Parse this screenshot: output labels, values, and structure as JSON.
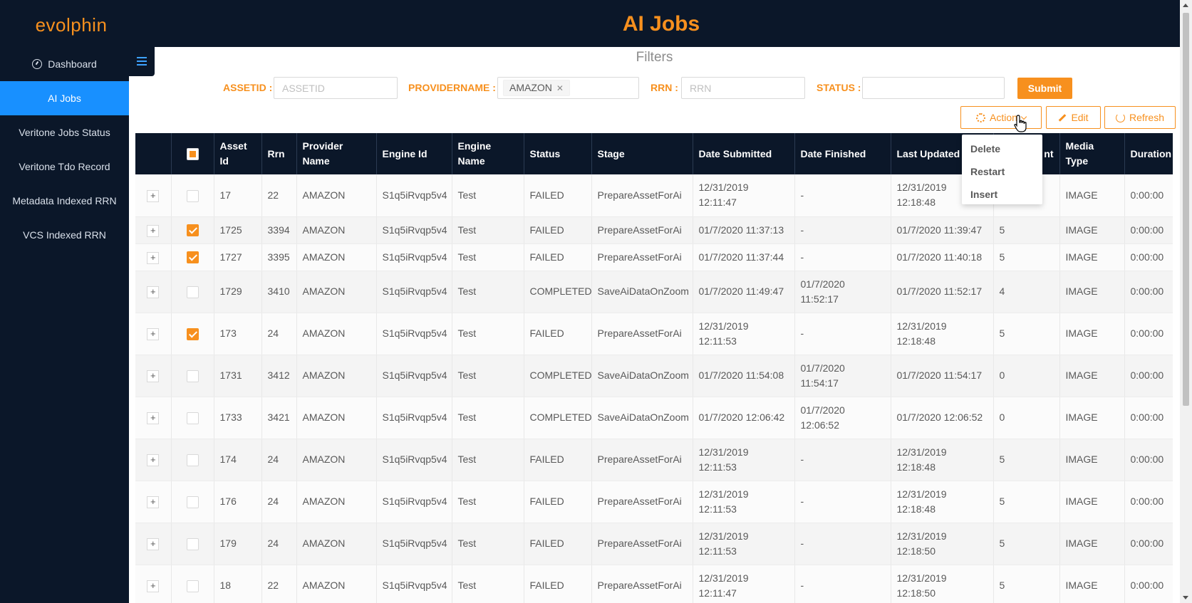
{
  "app": {
    "logo": "evolphin",
    "title": "AI Jobs"
  },
  "sidebar": {
    "items": [
      {
        "label": "Dashboard",
        "icon": "dashboard-icon",
        "active": false
      },
      {
        "label": "AI Jobs",
        "active": true
      },
      {
        "label": "Veritone Jobs Status",
        "active": false
      },
      {
        "label": "Veritone Tdo Record",
        "active": false
      },
      {
        "label": "Metadata Indexed RRN",
        "active": false
      },
      {
        "label": "VCS Indexed RRN",
        "active": false
      }
    ]
  },
  "filters": {
    "title": "Filters",
    "assetid": {
      "label": "ASSETID",
      "placeholder": "ASSETID",
      "value": ""
    },
    "providername": {
      "label": "PROVIDERNAME",
      "tags": [
        "AMAZON"
      ]
    },
    "rrn": {
      "label": "RRN",
      "placeholder": "RRN",
      "value": ""
    },
    "status": {
      "label": "STATUS",
      "value": ""
    },
    "submit_label": "Submit"
  },
  "toolbar": {
    "action_label": "Action",
    "edit_label": "Edit",
    "refresh_label": "Refresh",
    "action_menu": [
      "Delete",
      "Restart",
      "Insert"
    ]
  },
  "colors": {
    "brand": "#f7901e",
    "nav_bg": "#0b1729",
    "active": "#1890ff"
  },
  "table": {
    "columns": [
      "",
      "",
      "Asset Id",
      "Rrn",
      "Provider Name",
      "Engine Id",
      "Engine Name",
      "Status",
      "Stage",
      "Date Submitted",
      "Date Finished",
      "Last Updated",
      "nt",
      "Media Type",
      "Duration"
    ],
    "rows": [
      {
        "checked": false,
        "tall": true,
        "asset_id": "17",
        "rrn": "22",
        "provider": "AMAZON",
        "engine_id": "S1q5iRvqp5v4",
        "engine_name": "Test",
        "status": "FAILED",
        "stage": "PrepareAssetForAi",
        "submitted": "12/31/2019 12:11:47",
        "finished": "-",
        "updated": "12/31/2019 12:18:48",
        "count": "",
        "media": "IMAGE",
        "duration": "0:00:00"
      },
      {
        "checked": true,
        "tall": false,
        "asset_id": "1725",
        "rrn": "3394",
        "provider": "AMAZON",
        "engine_id": "S1q5iRvqp5v4",
        "engine_name": "Test",
        "status": "FAILED",
        "stage": "PrepareAssetForAi",
        "submitted": "01/7/2020 11:37:13",
        "finished": "-",
        "updated": "01/7/2020 11:39:47",
        "count": "5",
        "media": "IMAGE",
        "duration": "0:00:00"
      },
      {
        "checked": true,
        "tall": false,
        "asset_id": "1727",
        "rrn": "3395",
        "provider": "AMAZON",
        "engine_id": "S1q5iRvqp5v4",
        "engine_name": "Test",
        "status": "FAILED",
        "stage": "PrepareAssetForAi",
        "submitted": "01/7/2020 11:37:44",
        "finished": "-",
        "updated": "01/7/2020 11:40:18",
        "count": "5",
        "media": "IMAGE",
        "duration": "0:00:00"
      },
      {
        "checked": false,
        "tall": true,
        "asset_id": "1729",
        "rrn": "3410",
        "provider": "AMAZON",
        "engine_id": "S1q5iRvqp5v4",
        "engine_name": "Test",
        "status": "COMPLETED",
        "stage": "SaveAiDataOnZoom",
        "submitted": "01/7/2020 11:49:47",
        "finished": "01/7/2020 11:52:17",
        "updated": "01/7/2020 11:52:17",
        "count": "4",
        "media": "IMAGE",
        "duration": "0:00:00"
      },
      {
        "checked": true,
        "tall": true,
        "asset_id": "173",
        "rrn": "24",
        "provider": "AMAZON",
        "engine_id": "S1q5iRvqp5v4",
        "engine_name": "Test",
        "status": "FAILED",
        "stage": "PrepareAssetForAi",
        "submitted": "12/31/2019 12:11:53",
        "finished": "-",
        "updated": "12/31/2019 12:18:48",
        "count": "5",
        "media": "IMAGE",
        "duration": "0:00:00"
      },
      {
        "checked": false,
        "tall": true,
        "asset_id": "1731",
        "rrn": "3412",
        "provider": "AMAZON",
        "engine_id": "S1q5iRvqp5v4",
        "engine_name": "Test",
        "status": "COMPLETED",
        "stage": "SaveAiDataOnZoom",
        "submitted": "01/7/2020 11:54:08",
        "finished": "01/7/2020 11:54:17",
        "updated": "01/7/2020 11:54:17",
        "count": "0",
        "media": "IMAGE",
        "duration": "0:00:00"
      },
      {
        "checked": false,
        "tall": true,
        "asset_id": "1733",
        "rrn": "3421",
        "provider": "AMAZON",
        "engine_id": "S1q5iRvqp5v4",
        "engine_name": "Test",
        "status": "COMPLETED",
        "stage": "SaveAiDataOnZoom",
        "submitted": "01/7/2020 12:06:42",
        "finished": "01/7/2020 12:06:52",
        "updated": "01/7/2020 12:06:52",
        "count": "0",
        "media": "IMAGE",
        "duration": "0:00:00"
      },
      {
        "checked": false,
        "tall": true,
        "asset_id": "174",
        "rrn": "24",
        "provider": "AMAZON",
        "engine_id": "S1q5iRvqp5v4",
        "engine_name": "Test",
        "status": "FAILED",
        "stage": "PrepareAssetForAi",
        "submitted": "12/31/2019 12:11:53",
        "finished": "-",
        "updated": "12/31/2019 12:18:48",
        "count": "5",
        "media": "IMAGE",
        "duration": "0:00:00"
      },
      {
        "checked": false,
        "tall": true,
        "asset_id": "176",
        "rrn": "24",
        "provider": "AMAZON",
        "engine_id": "S1q5iRvqp5v4",
        "engine_name": "Test",
        "status": "FAILED",
        "stage": "PrepareAssetForAi",
        "submitted": "12/31/2019 12:11:53",
        "finished": "-",
        "updated": "12/31/2019 12:18:48",
        "count": "5",
        "media": "IMAGE",
        "duration": "0:00:00"
      },
      {
        "checked": false,
        "tall": true,
        "asset_id": "179",
        "rrn": "24",
        "provider": "AMAZON",
        "engine_id": "S1q5iRvqp5v4",
        "engine_name": "Test",
        "status": "FAILED",
        "stage": "PrepareAssetForAi",
        "submitted": "12/31/2019 12:11:53",
        "finished": "-",
        "updated": "12/31/2019 12:18:50",
        "count": "5",
        "media": "IMAGE",
        "duration": "0:00:00"
      },
      {
        "checked": false,
        "tall": true,
        "asset_id": "18",
        "rrn": "22",
        "provider": "AMAZON",
        "engine_id": "S1q5iRvqp5v4",
        "engine_name": "Test",
        "status": "FAILED",
        "stage": "PrepareAssetForAi",
        "submitted": "12/31/2019 12:11:47",
        "finished": "-",
        "updated": "12/31/2019 12:18:50",
        "count": "5",
        "media": "IMAGE",
        "duration": "0:00:00"
      }
    ]
  }
}
